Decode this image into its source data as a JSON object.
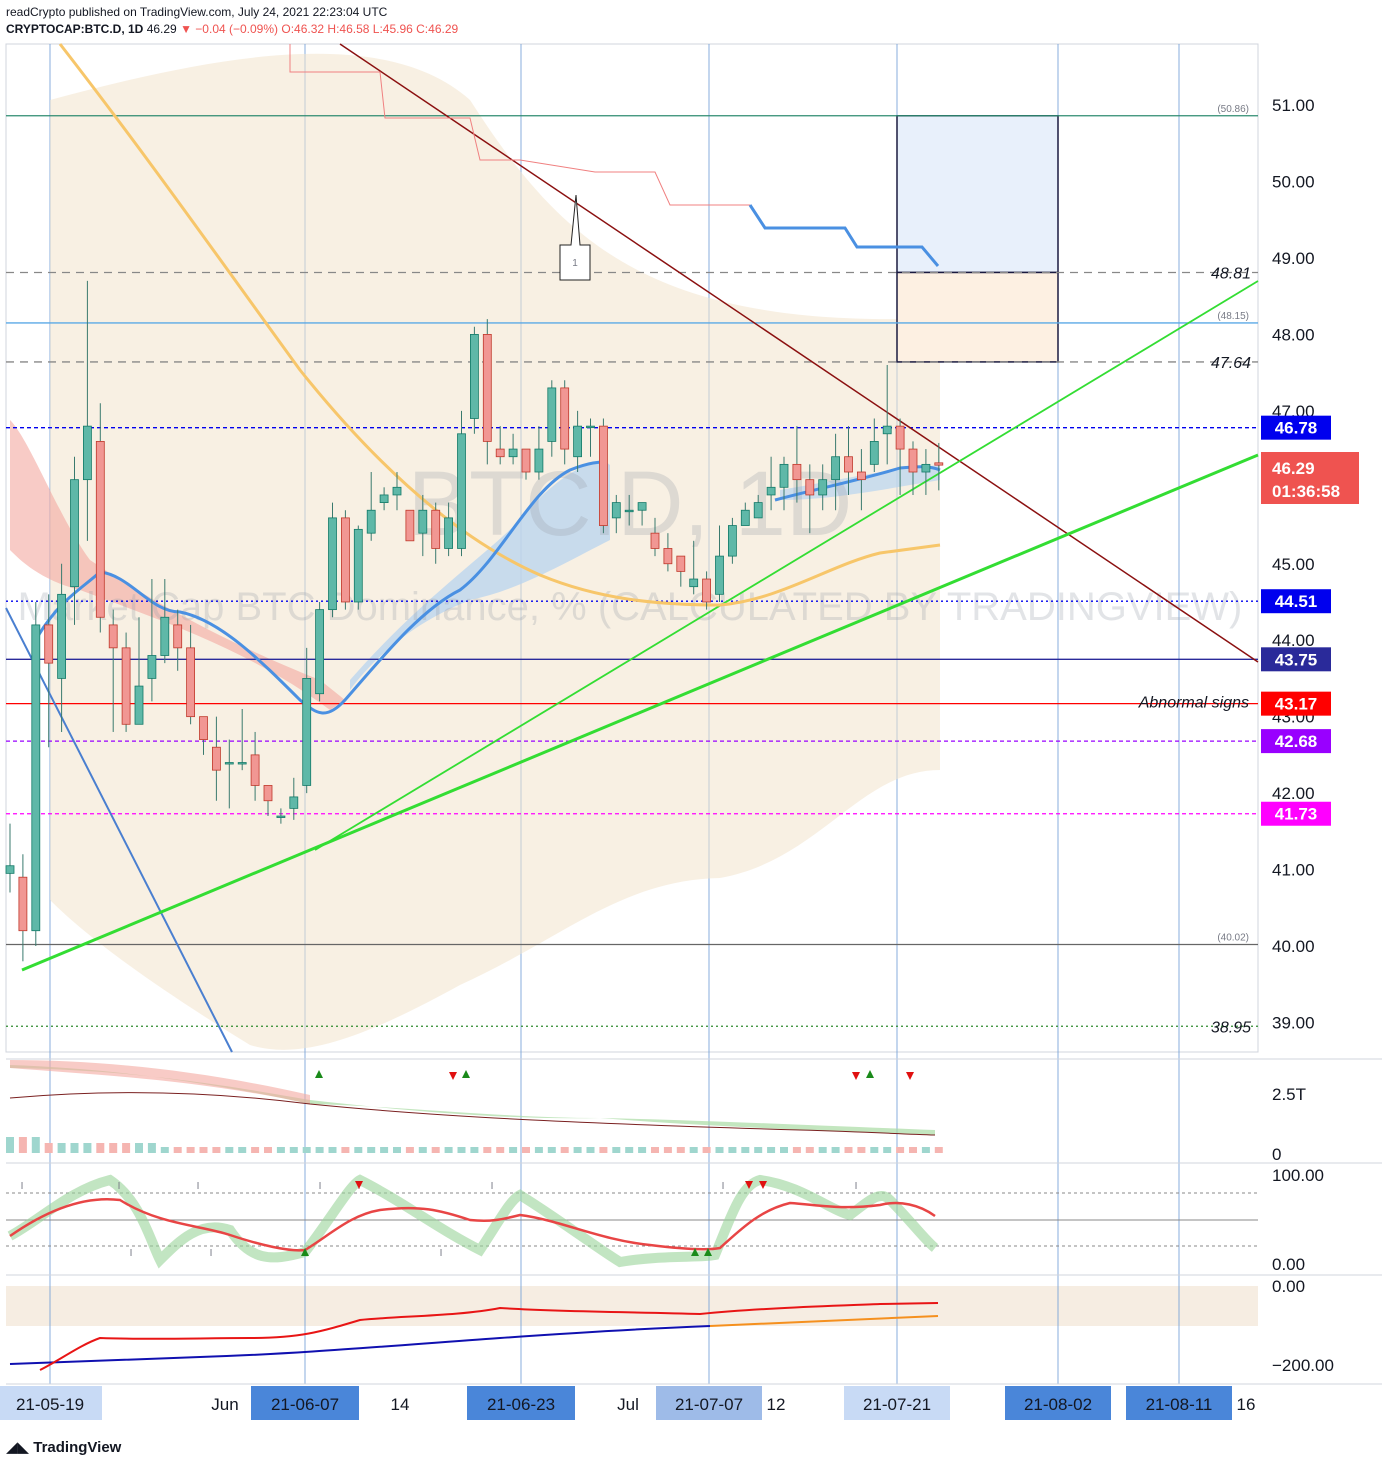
{
  "header": {
    "line1": "readCrypto published on TradingView.com, July 24, 2021 22:23:04 UTC",
    "symbol": "CRYPTOCAP:BTC.D, 1D",
    "last": "46.29",
    "change": "−0.04 (−0.09%)",
    "ohlc": "O:46.32 H:46.58 L:45.96 C:46.29"
  },
  "watermark": {
    "symbol": "BTC.D, 1D",
    "name": "Market Cap BTC Dominance, % (CALCULATED BY TRADINGVIEW)"
  },
  "footer": {
    "logo": "TradingView"
  },
  "chart_data": {
    "type": "candlestick",
    "y_axis": {
      "min": 38.6,
      "max": 51.8,
      "ticks": [
        "51.00",
        "50.00",
        "49.00",
        "48.00",
        "47.00",
        "46.00",
        "45.00",
        "44.00",
        "43.00",
        "42.00",
        "41.00",
        "40.00",
        "39.00"
      ]
    },
    "x_axis": {
      "labels": [
        "21-05-19",
        "Jun",
        "21-06-07",
        "14",
        "21-06-23",
        "Jul",
        "21-07-07",
        "12",
        "21-07-21",
        "21-08-02",
        "21-08-11",
        "16"
      ],
      "highlighted": [
        "21-05-19",
        "21-06-07",
        "21-06-23",
        "21-07-07",
        "21-07-21",
        "21-08-02",
        "21-08-11"
      ]
    },
    "candles": [
      [
        40.95,
        41.05,
        40.7,
        41.6
      ],
      [
        40.9,
        40.2,
        39.8,
        41.2
      ],
      [
        40.2,
        44.2,
        40.0,
        44.5
      ],
      [
        44.2,
        43.7,
        42.6,
        44.6
      ],
      [
        43.5,
        44.6,
        42.8,
        45.0
      ],
      [
        44.7,
        46.1,
        44.2,
        46.4
      ],
      [
        46.1,
        46.8,
        45.3,
        48.7
      ],
      [
        46.6,
        44.3,
        44.1,
        47.1
      ],
      [
        44.2,
        43.9,
        42.8,
        44.4
      ],
      [
        43.9,
        42.9,
        42.8,
        44.1
      ],
      [
        42.9,
        43.4,
        42.9,
        44.3
      ],
      [
        43.5,
        43.8,
        43.2,
        44.8
      ],
      [
        43.8,
        44.3,
        43.7,
        44.8
      ],
      [
        44.2,
        43.9,
        43.6,
        44.4
      ],
      [
        43.9,
        43.0,
        42.9,
        44.2
      ],
      [
        43.0,
        42.7,
        42.5,
        43.0
      ],
      [
        42.6,
        42.3,
        41.9,
        43.0
      ],
      [
        42.4,
        42.4,
        41.8,
        42.7
      ],
      [
        42.4,
        42.4,
        42.3,
        43.1
      ],
      [
        42.5,
        42.1,
        41.9,
        42.8
      ],
      [
        42.1,
        41.9,
        41.7,
        42.1
      ],
      [
        41.7,
        41.7,
        41.6,
        41.8
      ],
      [
        41.8,
        41.95,
        41.65,
        42.2
      ],
      [
        42.1,
        43.5,
        42.0,
        43.9
      ],
      [
        43.3,
        44.4,
        43.2,
        44.5
      ],
      [
        44.4,
        45.6,
        44.3,
        45.8
      ],
      [
        45.6,
        44.5,
        44.4,
        45.7
      ],
      [
        44.5,
        45.45,
        44.4,
        45.5
      ],
      [
        45.4,
        45.7,
        45.3,
        46.2
      ],
      [
        45.8,
        45.9,
        45.7,
        46.0
      ],
      [
        45.9,
        46.0,
        45.7,
        46.2
      ],
      [
        45.7,
        45.3,
        45.3,
        45.7
      ],
      [
        45.4,
        45.7,
        45.1,
        45.9
      ],
      [
        45.7,
        45.2,
        45.0,
        45.8
      ],
      [
        45.2,
        45.6,
        45.1,
        45.8
      ],
      [
        45.2,
        46.7,
        45.1,
        47.0
      ],
      [
        46.9,
        48.0,
        46.7,
        48.1
      ],
      [
        48.0,
        46.6,
        46.3,
        48.2
      ],
      [
        46.5,
        46.4,
        46.3,
        46.8
      ],
      [
        46.4,
        46.5,
        46.3,
        46.7
      ],
      [
        46.5,
        46.2,
        46.1,
        46.5
      ],
      [
        46.2,
        46.5,
        46.1,
        46.8
      ],
      [
        46.6,
        47.3,
        46.4,
        47.4
      ],
      [
        47.3,
        46.5,
        46.3,
        47.4
      ],
      [
        46.4,
        46.8,
        46.2,
        47.0
      ],
      [
        46.8,
        46.8,
        46.4,
        46.9
      ],
      [
        46.8,
        45.5,
        45.4,
        46.9
      ],
      [
        45.6,
        45.8,
        45.4,
        45.9
      ],
      [
        45.7,
        45.7,
        45.5,
        45.9
      ],
      [
        45.7,
        45.8,
        45.5,
        45.8
      ],
      [
        45.4,
        45.2,
        45.1,
        45.6
      ],
      [
        45.2,
        45.0,
        44.9,
        45.4
      ],
      [
        45.1,
        44.9,
        44.7,
        45.1
      ],
      [
        44.7,
        44.8,
        44.6,
        45.3
      ],
      [
        44.8,
        44.5,
        44.4,
        44.9
      ],
      [
        44.6,
        45.1,
        44.5,
        45.5
      ],
      [
        45.1,
        45.5,
        45.0,
        45.6
      ],
      [
        45.5,
        45.7,
        45.5,
        45.8
      ],
      [
        45.6,
        45.8,
        45.6,
        45.9
      ],
      [
        45.9,
        46.0,
        45.7,
        46.4
      ],
      [
        46.0,
        46.3,
        45.7,
        46.4
      ],
      [
        46.3,
        46.1,
        45.8,
        46.8
      ],
      [
        46.1,
        45.9,
        45.4,
        46.3
      ],
      [
        45.9,
        46.1,
        45.7,
        46.3
      ],
      [
        46.1,
        46.4,
        45.7,
        46.7
      ],
      [
        46.4,
        46.2,
        45.9,
        46.8
      ],
      [
        46.2,
        46.1,
        45.7,
        46.5
      ],
      [
        46.3,
        46.6,
        46.2,
        46.9
      ],
      [
        46.7,
        46.8,
        46.3,
        47.6
      ],
      [
        46.8,
        46.5,
        45.9,
        46.9
      ],
      [
        46.5,
        46.2,
        45.9,
        46.6
      ],
      [
        46.2,
        46.3,
        45.9,
        46.5
      ],
      [
        46.32,
        46.29,
        45.96,
        46.58
      ]
    ],
    "horizontal_levels": [
      {
        "value": 50.86,
        "label": "(50.86)",
        "color": "#2e8b71"
      },
      {
        "value": 48.81,
        "label": "48.81",
        "color": "#888888"
      },
      {
        "value": 48.15,
        "label": "(48.15)",
        "color": "#5aa9e6"
      },
      {
        "value": 47.64,
        "label": "47.64",
        "color": "#888888"
      },
      {
        "value": 46.78,
        "label": "46.78",
        "color": "#0000ee"
      },
      {
        "value": 44.51,
        "label": "44.51",
        "color": "#0000ee"
      },
      {
        "value": 43.75,
        "label": "43.75",
        "color": "#2a2a9a"
      },
      {
        "value": 43.17,
        "label": "43.17",
        "color": "#ff0000"
      },
      {
        "value": 42.68,
        "label": "42.68",
        "color": "#9900ff"
      },
      {
        "value": 41.73,
        "label": "41.73",
        "color": "#ff00ff"
      },
      {
        "value": 40.02,
        "label": "(40.02)",
        "color": "#666666"
      },
      {
        "value": 38.95,
        "label": "38.95",
        "color": "#2e8b2e"
      }
    ],
    "annotations": {
      "abnormal": "Abnormal signs",
      "marker": "1",
      "countdown": "01:36:58"
    },
    "volume_axis": [
      "2.5T",
      "0"
    ],
    "oscillator_axis": [
      "100.00",
      "0.00"
    ],
    "lower_axis": [
      "0.00",
      "−200.00"
    ]
  }
}
